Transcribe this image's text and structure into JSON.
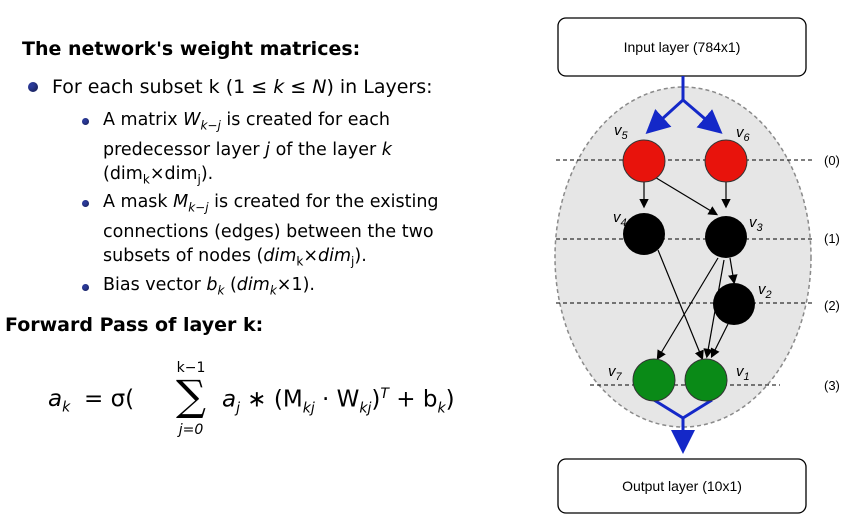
{
  "slide": {
    "heading_weights": "The network's weight matrices:",
    "bullet_main": {
      "prefix": "For each subset k (1 ≤ ",
      "k": "k",
      "mid": " ≤ ",
      "N": "N",
      "suffix": ") in Layers:"
    },
    "sub1": {
      "a": "A matrix ",
      "W": "W",
      "W_sub": "k−j",
      "b": " is created for each",
      "line2a": "predecessor layer ",
      "j": "j",
      "line2b": " of the layer ",
      "k": "k",
      "line3": "(dim",
      "line3_sub1": "k",
      "line3_x": "×dim",
      "line3_sub2": "j",
      "line3_end": ")."
    },
    "sub2": {
      "a": "A mask ",
      "M": "M",
      "M_sub": "k−j",
      "b": " is created for the existing",
      "line2": "connections (edges) between the two",
      "line3a": "subsets of nodes (",
      "line3_dim": "dim",
      "line3_sub1": "k",
      "line3_x": "×dim",
      "line3_sub2": "j",
      "line3_end": ")."
    },
    "sub3": {
      "a": "Bias vector ",
      "b": "b",
      "b_sub": "k",
      "c": " (",
      "dim": "dim",
      "dim_sub": "k",
      "d": "×1)."
    },
    "heading_forward": "Forward Pass of layer k:",
    "formula": {
      "lhs": "a",
      "lhs_sub": "k",
      "eq": " = σ(",
      "sum_top": "k−1",
      "sum_bottom": "j=0",
      "sum": "∑",
      "body1": "a",
      "body1_sub": "j",
      "body2": " ∗ (M",
      "body2_sub": "kj",
      "body3": " · W",
      "body3_sub": "kj",
      "body4": ")",
      "body4_sup": "T",
      "body5": " + b",
      "body5_sub": "k",
      "body6": ")"
    }
  },
  "diagram": {
    "input_label": "Input layer (784x1)",
    "output_label": "Output layer (10x1)",
    "layer_labels": [
      "(0)",
      "(1)",
      "(2)",
      "(3)"
    ],
    "nodes": [
      {
        "id": "v5",
        "label": "v",
        "sub": "5",
        "color": "#e8130c"
      },
      {
        "id": "v6",
        "label": "v",
        "sub": "6",
        "color": "#e8130c"
      },
      {
        "id": "v4",
        "label": "v",
        "sub": "4",
        "color": "#000000"
      },
      {
        "id": "v3",
        "label": "v",
        "sub": "3",
        "color": "#000000"
      },
      {
        "id": "v2",
        "label": "v",
        "sub": "2",
        "color": "#000000"
      },
      {
        "id": "v7",
        "label": "v",
        "sub": "7",
        "color": "#0a8a17"
      },
      {
        "id": "v1",
        "label": "v",
        "sub": "1",
        "color": "#0a8a17"
      }
    ],
    "colors": {
      "arrow_blue": "#1428c8",
      "ellipse_fill": "#e6e6e6",
      "bullet": "#2b3a99"
    }
  }
}
